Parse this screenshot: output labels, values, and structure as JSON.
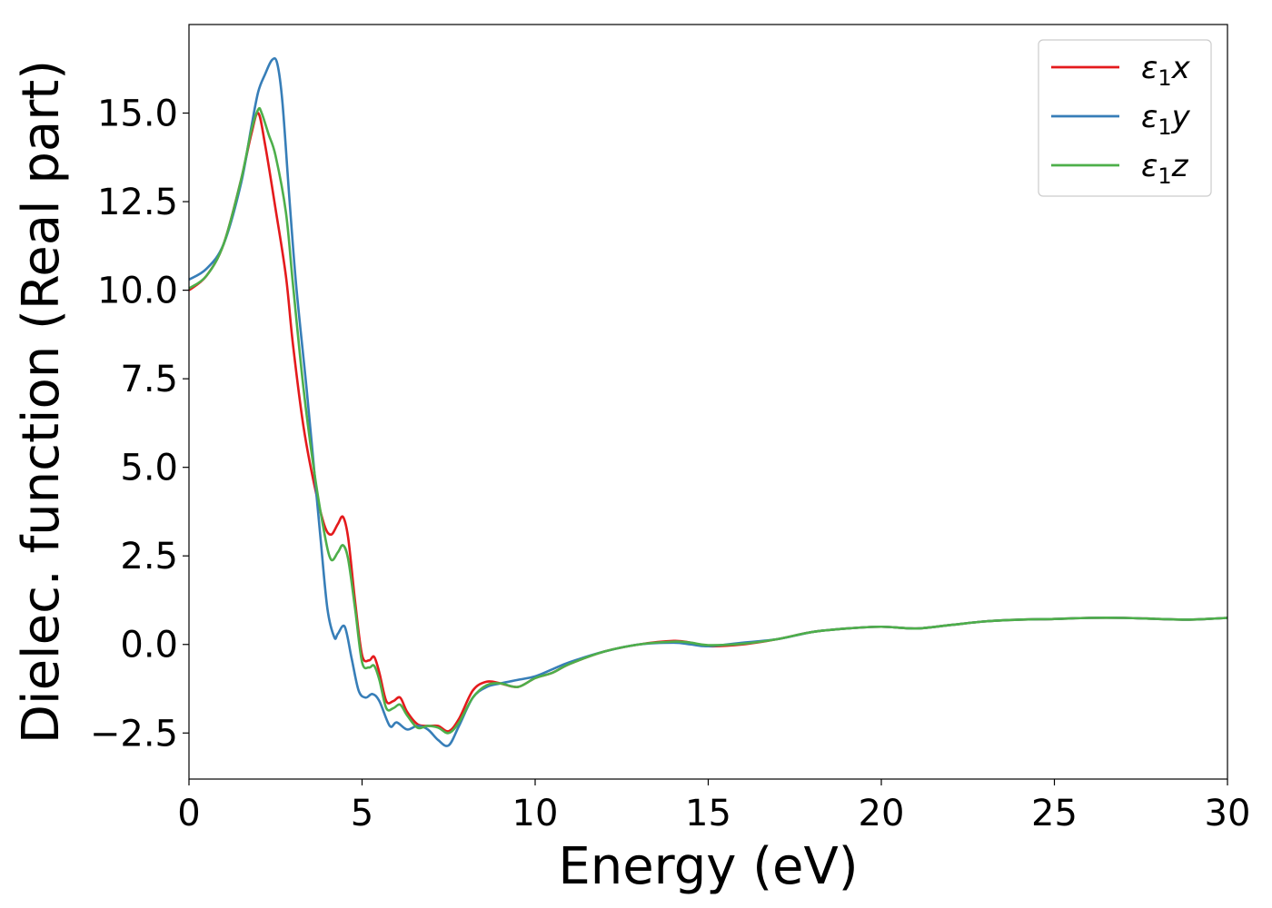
{
  "chart_data": {
    "type": "line",
    "title": "",
    "xlabel": "Energy (eV)",
    "ylabel": "Dielec. function (Real part)",
    "xlim": [
      0,
      30
    ],
    "ylim": [
      -3.8,
      17.5
    ],
    "xticks": [
      0,
      5,
      10,
      15,
      20,
      25,
      30
    ],
    "xtick_labels": [
      "0",
      "5",
      "10",
      "15",
      "20",
      "25",
      "30"
    ],
    "yticks": [
      -2.5,
      0,
      2.5,
      5,
      7.5,
      10,
      12.5,
      15
    ],
    "ytick_labels": [
      "−2.5",
      "0.0",
      "2.5",
      "5.0",
      "7.5",
      "10.0",
      "12.5",
      "15.0"
    ],
    "grid": false,
    "legend": "top-right",
    "series": [
      {
        "name": "ε1x",
        "label_symbol": "ε",
        "label_sub": "1",
        "label_var": "x",
        "color": "#e41a1c",
        "x": [
          0,
          0.5,
          1.0,
          1.5,
          1.8,
          2.0,
          2.2,
          2.5,
          2.8,
          3.0,
          3.3,
          3.6,
          3.9,
          4.1,
          4.3,
          4.45,
          4.6,
          4.8,
          5.0,
          5.2,
          5.35,
          5.5,
          5.7,
          5.9,
          6.1,
          6.3,
          6.6,
          6.9,
          7.2,
          7.5,
          7.8,
          8.2,
          8.6,
          9.0,
          9.5,
          10.0,
          10.5,
          11.0,
          12.0,
          13.0,
          14.0,
          14.5,
          15.0,
          16.0,
          17.0,
          18.0,
          19.0,
          20.0,
          21.0,
          22.0,
          23.0,
          24.0,
          25.0,
          26.0,
          27.0,
          28.0,
          28.8,
          29.4,
          30.0
        ],
        "y": [
          10.0,
          10.4,
          11.3,
          13.1,
          14.4,
          15.0,
          14.1,
          12.3,
          10.4,
          8.5,
          6.2,
          4.6,
          3.4,
          3.1,
          3.4,
          3.6,
          3.0,
          1.2,
          -0.3,
          -0.45,
          -0.35,
          -0.8,
          -1.6,
          -1.6,
          -1.5,
          -1.9,
          -2.25,
          -2.3,
          -2.3,
          -2.45,
          -2.1,
          -1.3,
          -1.05,
          -1.1,
          -1.2,
          -0.95,
          -0.8,
          -0.55,
          -0.2,
          0.0,
          0.1,
          0.05,
          -0.05,
          0.0,
          0.15,
          0.35,
          0.45,
          0.5,
          0.45,
          0.55,
          0.65,
          0.7,
          0.72,
          0.75,
          0.75,
          0.72,
          0.7,
          0.72,
          0.75
        ]
      },
      {
        "name": "ε1y",
        "label_symbol": "ε",
        "label_sub": "1",
        "label_var": "y",
        "color": "#377eb8",
        "x": [
          0,
          0.5,
          1.0,
          1.5,
          1.8,
          2.0,
          2.2,
          2.4,
          2.55,
          2.7,
          2.9,
          3.1,
          3.4,
          3.6,
          3.8,
          4.0,
          4.2,
          4.3,
          4.5,
          4.7,
          4.9,
          5.1,
          5.3,
          5.5,
          5.8,
          6.0,
          6.3,
          6.6,
          6.9,
          7.2,
          7.5,
          7.8,
          8.2,
          8.6,
          9.0,
          9.5,
          10.0,
          10.5,
          11.0,
          12.0,
          13.0,
          14.0,
          14.5,
          15.0,
          16.0,
          17.0,
          18.0,
          19.0,
          20.0,
          21.0,
          22.0,
          23.0,
          24.0,
          25.0,
          26.0,
          27.0,
          28.0,
          28.8,
          29.4,
          30.0
        ],
        "y": [
          10.3,
          10.6,
          11.3,
          13.0,
          14.6,
          15.6,
          16.1,
          16.5,
          16.4,
          15.3,
          12.6,
          10.1,
          7.2,
          5.1,
          3.0,
          1.0,
          0.2,
          0.3,
          0.5,
          -0.4,
          -1.3,
          -1.5,
          -1.4,
          -1.6,
          -2.3,
          -2.2,
          -2.4,
          -2.3,
          -2.4,
          -2.7,
          -2.85,
          -2.3,
          -1.5,
          -1.2,
          -1.1,
          -1.0,
          -0.9,
          -0.7,
          -0.5,
          -0.2,
          0.0,
          0.05,
          0.0,
          -0.05,
          0.05,
          0.15,
          0.35,
          0.45,
          0.5,
          0.45,
          0.55,
          0.65,
          0.7,
          0.72,
          0.75,
          0.75,
          0.72,
          0.7,
          0.72,
          0.75
        ]
      },
      {
        "name": "ε1z",
        "label_symbol": "ε",
        "label_sub": "1",
        "label_var": "z",
        "color": "#4daf4a",
        "x": [
          0,
          0.5,
          1.0,
          1.5,
          1.8,
          2.0,
          2.1,
          2.3,
          2.5,
          2.8,
          3.0,
          3.3,
          3.6,
          3.9,
          4.1,
          4.3,
          4.45,
          4.6,
          4.8,
          5.0,
          5.2,
          5.35,
          5.5,
          5.7,
          5.9,
          6.1,
          6.3,
          6.6,
          6.9,
          7.2,
          7.5,
          7.8,
          8.2,
          8.6,
          9.0,
          9.5,
          10.0,
          10.5,
          11.0,
          12.0,
          13.0,
          14.0,
          14.5,
          15.0,
          16.0,
          17.0,
          18.0,
          19.0,
          20.0,
          21.0,
          22.0,
          23.0,
          24.0,
          25.0,
          26.0,
          27.0,
          28.0,
          28.8,
          29.4,
          30.0
        ],
        "y": [
          10.05,
          10.4,
          11.3,
          13.1,
          14.5,
          15.1,
          15.0,
          14.4,
          13.8,
          12.2,
          10.2,
          7.3,
          5.0,
          3.2,
          2.4,
          2.6,
          2.8,
          2.4,
          1.0,
          -0.5,
          -0.65,
          -0.6,
          -1.0,
          -1.8,
          -1.8,
          -1.7,
          -2.0,
          -2.35,
          -2.3,
          -2.35,
          -2.5,
          -2.2,
          -1.5,
          -1.15,
          -1.1,
          -1.2,
          -0.95,
          -0.8,
          -0.55,
          -0.2,
          0.0,
          0.08,
          0.05,
          -0.02,
          0.02,
          0.15,
          0.35,
          0.45,
          0.5,
          0.45,
          0.55,
          0.65,
          0.7,
          0.72,
          0.75,
          0.75,
          0.72,
          0.7,
          0.72,
          0.75
        ]
      }
    ]
  }
}
